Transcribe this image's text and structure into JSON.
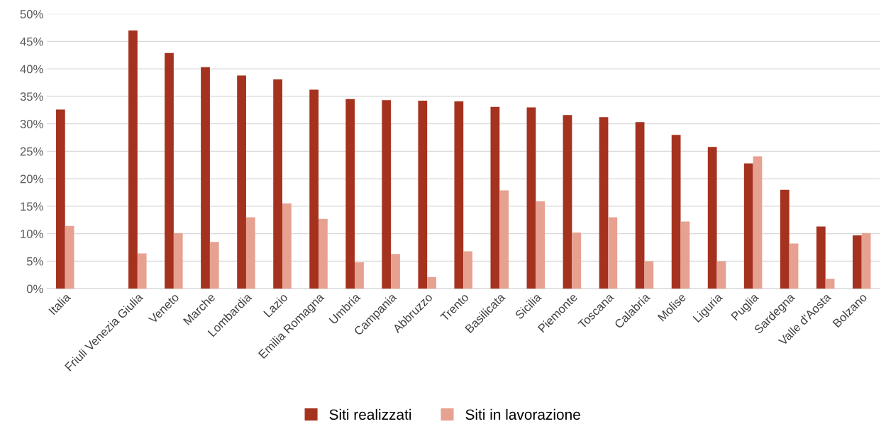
{
  "chart_data": {
    "type": "bar",
    "categories": [
      "Italia",
      null,
      "Friuli Venezia Giulia",
      "Veneto",
      "Marche",
      "Lombardia",
      "Lazio",
      "Emilia Romagna",
      "Umbria",
      "Campania",
      "Abbruzzo",
      "Trento",
      "Basilicata",
      "Sicilia",
      "Piemonte",
      "Toscana",
      "Calabria",
      "Molise",
      "Liguria",
      "Puglia",
      "Sardegna",
      "Valle d'Aosta",
      "Bolzano"
    ],
    "series": [
      {
        "name": "Siti realizzati",
        "color": "#a5321f",
        "values": [
          32.6,
          null,
          47.0,
          42.9,
          40.3,
          38.8,
          38.1,
          36.2,
          34.5,
          34.3,
          34.2,
          34.1,
          33.1,
          33.0,
          31.6,
          31.2,
          30.3,
          28.0,
          25.8,
          22.8,
          18.0,
          11.3,
          9.7
        ]
      },
      {
        "name": "Siti in lavorazione",
        "color": "#e6a190",
        "values": [
          11.4,
          null,
          6.4,
          10.1,
          8.5,
          13.0,
          15.5,
          12.7,
          4.8,
          6.3,
          2.1,
          6.8,
          17.9,
          15.9,
          10.2,
          13.0,
          5.0,
          12.2,
          5.0,
          24.1,
          8.2,
          1.8,
          10.1
        ]
      }
    ],
    "ylim": [
      0,
      50
    ],
    "yticks": [
      {
        "value": 0,
        "label": "0%"
      },
      {
        "value": 5,
        "label": "5%"
      },
      {
        "value": 10,
        "label": "10%"
      },
      {
        "value": 15,
        "label": "15%"
      },
      {
        "value": 20,
        "label": "20%"
      },
      {
        "value": 25,
        "label": "25%"
      },
      {
        "value": 30,
        "label": "30%"
      },
      {
        "value": 35,
        "label": "35%"
      },
      {
        "value": 40,
        "label": "40%"
      },
      {
        "value": 45,
        "label": "45%"
      },
      {
        "value": 50,
        "label": "50%"
      }
    ],
    "grid": "y",
    "legend": "bottom"
  }
}
